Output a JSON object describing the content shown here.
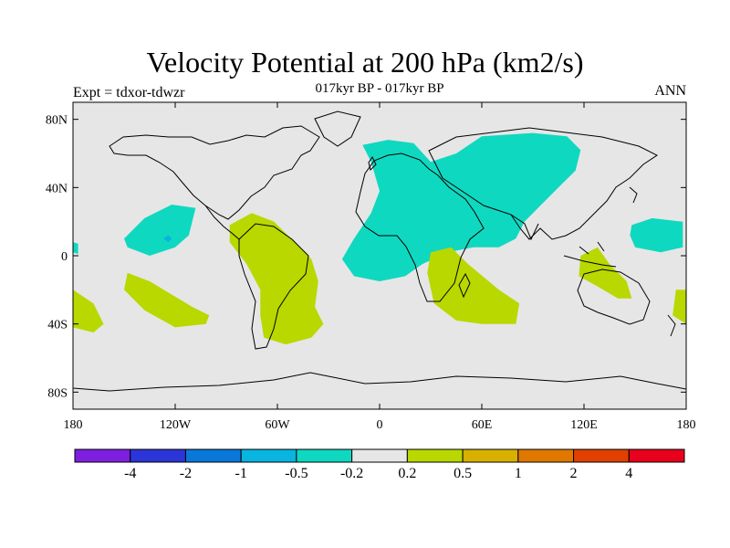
{
  "title": "Velocity Potential at 200 hPa (km2/s)",
  "subtitle": "017kyr BP - 017kyr BP",
  "left_label": "Expt = tdxor-tdwzr",
  "right_label": "ANN",
  "map": {
    "lon_range": [
      -180,
      180
    ],
    "lat_range": [
      -90,
      90
    ],
    "x_ticks": [
      {
        "value": -180,
        "label": "180"
      },
      {
        "value": -120,
        "label": "120W"
      },
      {
        "value": -60,
        "label": "60W"
      },
      {
        "value": 0,
        "label": "0"
      },
      {
        "value": 60,
        "label": "60E"
      },
      {
        "value": 120,
        "label": "120E"
      },
      {
        "value": 180,
        "label": "180"
      }
    ],
    "y_ticks": [
      {
        "value": 80,
        "label": "80N"
      },
      {
        "value": 40,
        "label": "40N"
      },
      {
        "value": 0,
        "label": "0"
      },
      {
        "value": -40,
        "label": "40S"
      },
      {
        "value": -80,
        "label": "80S"
      }
    ],
    "background_color": "#e6e6e6"
  },
  "colorbar": {
    "colors": [
      "#7e1fe0",
      "#2b35d8",
      "#0a78d8",
      "#08b4e0",
      "#0fd8c0",
      "#e6e6e6",
      "#b8d800",
      "#d8b000",
      "#e07800",
      "#e04000",
      "#e8001c"
    ],
    "labels": [
      "-4",
      "-2",
      "-1",
      "-0.5",
      "-0.2",
      "0.2",
      "0.5",
      "1",
      "2",
      "4"
    ]
  },
  "chart_data": {
    "type": "heatmap",
    "title": "Velocity Potential at 200 hPa (km2/s)",
    "field": "velocity potential anomaly",
    "levels": [
      -4,
      -2,
      -1,
      -0.5,
      -0.2,
      0.2,
      0.5,
      1,
      2,
      4
    ],
    "regions": [
      {
        "sign": "negative",
        "interval": "-0.5 to -0.2",
        "color": "#0fd8c0",
        "polygon": [
          [
            -10,
            65
          ],
          [
            5,
            68
          ],
          [
            20,
            66
          ],
          [
            30,
            55
          ],
          [
            45,
            60
          ],
          [
            60,
            70
          ],
          [
            90,
            72
          ],
          [
            110,
            70
          ],
          [
            118,
            62
          ],
          [
            115,
            50
          ],
          [
            105,
            40
          ],
          [
            95,
            30
          ],
          [
            85,
            20
          ],
          [
            80,
            10
          ],
          [
            70,
            5
          ],
          [
            55,
            5
          ],
          [
            40,
            2
          ],
          [
            25,
            -5
          ],
          [
            15,
            -12
          ],
          [
            0,
            -15
          ],
          [
            -15,
            -12
          ],
          [
            -22,
            -2
          ],
          [
            -15,
            10
          ],
          [
            -5,
            25
          ],
          [
            0,
            38
          ],
          [
            -5,
            55
          ]
        ]
      },
      {
        "sign": "negative",
        "interval": "-0.5 to -0.2",
        "color": "#0fd8c0",
        "polygon": [
          [
            -150,
            10
          ],
          [
            -138,
            22
          ],
          [
            -122,
            30
          ],
          [
            -108,
            28
          ],
          [
            -112,
            12
          ],
          [
            -120,
            5
          ],
          [
            -135,
            0
          ],
          [
            -148,
            5
          ]
        ]
      },
      {
        "sign": "negative",
        "interval": "-1 to -0.5",
        "color": "#08b4e0",
        "polygon": [
          [
            -127,
            10
          ],
          [
            -124,
            12
          ],
          [
            -122,
            10
          ],
          [
            -124,
            8
          ]
        ]
      },
      {
        "sign": "negative",
        "interval": "-0.5 to -0.2",
        "color": "#0fd8c0",
        "polygon": [
          [
            148,
            18
          ],
          [
            160,
            22
          ],
          [
            178,
            20
          ],
          [
            178,
            5
          ],
          [
            165,
            2
          ],
          [
            150,
            5
          ],
          [
            147,
            12
          ]
        ]
      },
      {
        "sign": "negative",
        "interval": "-0.5 to -0.2",
        "color": "#0fd8c0",
        "polygon": [
          [
            -180,
            8
          ],
          [
            -177,
            7
          ],
          [
            -177,
            1
          ],
          [
            -180,
            2
          ]
        ]
      },
      {
        "sign": "positive",
        "interval": "0.2 to 0.5",
        "color": "#b8d800",
        "polygon": [
          [
            -88,
            18
          ],
          [
            -75,
            25
          ],
          [
            -62,
            20
          ],
          [
            -52,
            10
          ],
          [
            -40,
            -2
          ],
          [
            -36,
            -15
          ],
          [
            -38,
            -30
          ],
          [
            -33,
            -40
          ],
          [
            -40,
            -48
          ],
          [
            -55,
            -52
          ],
          [
            -68,
            -48
          ],
          [
            -70,
            -35
          ],
          [
            -70,
            -20
          ],
          [
            -78,
            -5
          ],
          [
            -88,
            8
          ]
        ]
      },
      {
        "sign": "positive",
        "interval": "0.2 to 0.5",
        "color": "#b8d800",
        "polygon": [
          [
            -148,
            -10
          ],
          [
            -135,
            -15
          ],
          [
            -110,
            -30
          ],
          [
            -100,
            -35
          ],
          [
            -102,
            -40
          ],
          [
            -120,
            -42
          ],
          [
            -138,
            -32
          ],
          [
            -150,
            -20
          ]
        ]
      },
      {
        "sign": "positive",
        "interval": "0.2 to 0.5",
        "color": "#b8d800",
        "polygon": [
          [
            30,
            2
          ],
          [
            42,
            5
          ],
          [
            52,
            -5
          ],
          [
            70,
            -20
          ],
          [
            82,
            -28
          ],
          [
            80,
            -40
          ],
          [
            60,
            -40
          ],
          [
            45,
            -38
          ],
          [
            32,
            -28
          ],
          [
            28,
            -10
          ]
        ]
      },
      {
        "sign": "positive",
        "interval": "0.2 to 0.5",
        "color": "#b8d800",
        "polygon": [
          [
            118,
            0
          ],
          [
            128,
            5
          ],
          [
            135,
            -5
          ],
          [
            145,
            -15
          ],
          [
            148,
            -25
          ],
          [
            140,
            -25
          ],
          [
            128,
            -18
          ],
          [
            117,
            -12
          ]
        ]
      },
      {
        "sign": "positive",
        "interval": "0.2 to 0.5",
        "color": "#b8d800",
        "polygon": [
          [
            -180,
            -20
          ],
          [
            -168,
            -28
          ],
          [
            -162,
            -40
          ],
          [
            -168,
            -45
          ],
          [
            -180,
            -42
          ]
        ]
      },
      {
        "sign": "positive",
        "interval": "0.2 to 0.5",
        "color": "#b8d800",
        "polygon": [
          [
            174,
            -20
          ],
          [
            180,
            -20
          ],
          [
            180,
            -40
          ],
          [
            172,
            -35
          ]
        ]
      }
    ]
  }
}
